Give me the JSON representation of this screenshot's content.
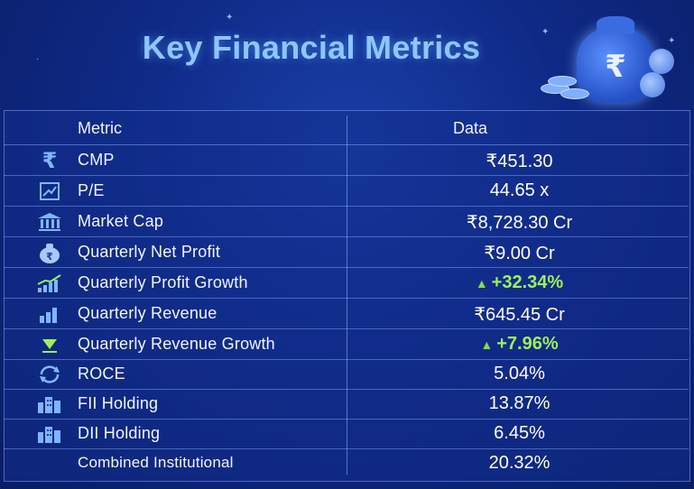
{
  "title": "Key Financial Metrics",
  "header": {
    "metric": "Metric",
    "data": "Data"
  },
  "decor": {
    "bag_symbol": "₹",
    "up_arrow": "▲"
  },
  "rows": [
    {
      "label": "CMP",
      "value": "₹451.30",
      "icon": "rupee-icon"
    },
    {
      "label": "P/E",
      "value": "44.65 x",
      "icon": "chart-frame-icon"
    },
    {
      "label": "Market Cap",
      "value": "₹8,728.30 Cr",
      "icon": "bank-building-icon"
    },
    {
      "label": "Quarterly Net Profit",
      "value": "₹9.00 Cr",
      "icon": "money-bag-icon"
    },
    {
      "label": "Quarterly Profit Growth",
      "value": "+32.34%",
      "icon": "rising-bars-icon",
      "trend": "up"
    },
    {
      "label": "Quarterly Revenue",
      "value": "₹645.45 Cr",
      "icon": "bar-chart-icon"
    },
    {
      "label": "Quarterly Revenue Growth",
      "value": "+7.96%",
      "icon": "down-arrow-icon",
      "trend": "up"
    },
    {
      "label": "ROCE",
      "value": "5.04%",
      "icon": "cycle-arrows-icon"
    },
    {
      "label": "FII Holding",
      "value": "13.87%",
      "icon": "city-buildings-icon"
    },
    {
      "label": "DII Holding",
      "value": "6.45%",
      "icon": "city-buildings-icon"
    },
    {
      "label": "Combined Institutional",
      "value": "20.32%"
    }
  ],
  "colors": {
    "title": "#8ec6ff",
    "growth_green": "#9ef05a",
    "icon_blue": "#7fb6ff"
  }
}
